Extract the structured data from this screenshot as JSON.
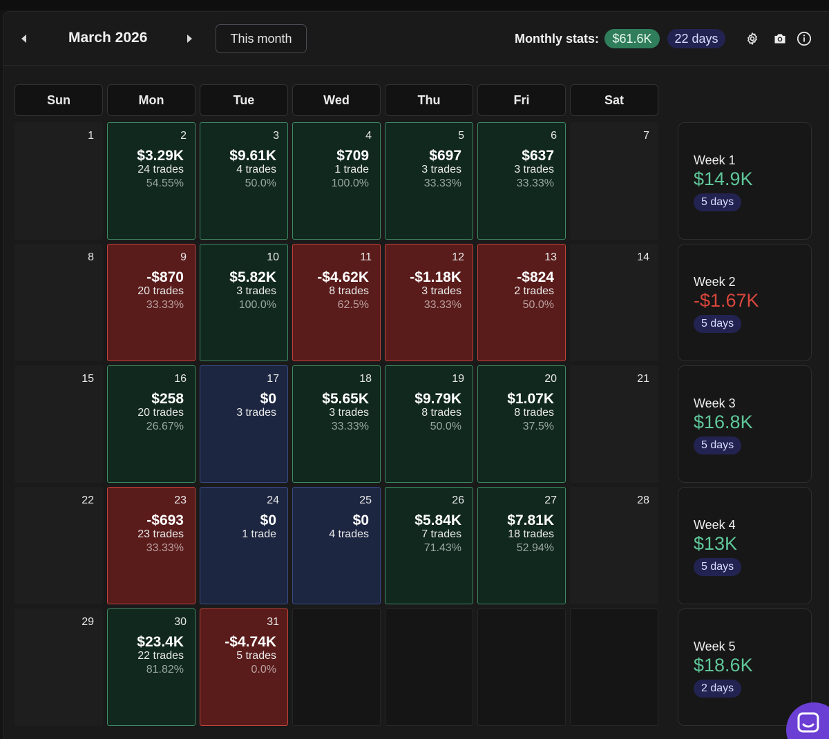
{
  "header": {
    "month_title": "March 2026",
    "this_month_label": "This month",
    "stats_label": "Monthly stats:",
    "monthly_pnl": "$61.6K",
    "monthly_days": "22 days",
    "icons": [
      "chevron-left-icon",
      "chevron-right-icon",
      "gear-icon",
      "camera-icon",
      "info-icon"
    ]
  },
  "weekdays": [
    "Sun",
    "Mon",
    "Tue",
    "Wed",
    "Thu",
    "Fri",
    "Sat"
  ],
  "weeks": [
    [
      {
        "day": "1",
        "status": "none"
      },
      {
        "day": "2",
        "status": "green",
        "pnl": "$3.29K",
        "trades": "24 trades",
        "rate": "54.55%"
      },
      {
        "day": "3",
        "status": "green",
        "pnl": "$9.61K",
        "trades": "4 trades",
        "rate": "50.0%"
      },
      {
        "day": "4",
        "status": "green",
        "pnl": "$709",
        "trades": "1 trade",
        "rate": "100.0%"
      },
      {
        "day": "5",
        "status": "green",
        "pnl": "$697",
        "trades": "3 trades",
        "rate": "33.33%"
      },
      {
        "day": "6",
        "status": "green",
        "pnl": "$637",
        "trades": "3 trades",
        "rate": "33.33%"
      },
      {
        "day": "7",
        "status": "none"
      }
    ],
    [
      {
        "day": "8",
        "status": "none"
      },
      {
        "day": "9",
        "status": "red",
        "pnl": "-$870",
        "trades": "20 trades",
        "rate": "33.33%"
      },
      {
        "day": "10",
        "status": "green",
        "pnl": "$5.82K",
        "trades": "3 trades",
        "rate": "100.0%"
      },
      {
        "day": "11",
        "status": "red",
        "pnl": "-$4.62K",
        "trades": "8 trades",
        "rate": "62.5%"
      },
      {
        "day": "12",
        "status": "red",
        "pnl": "-$1.18K",
        "trades": "3 trades",
        "rate": "33.33%"
      },
      {
        "day": "13",
        "status": "red",
        "pnl": "-$824",
        "trades": "2 trades",
        "rate": "50.0%"
      },
      {
        "day": "14",
        "status": "none"
      }
    ],
    [
      {
        "day": "15",
        "status": "none"
      },
      {
        "day": "16",
        "status": "green",
        "pnl": "$258",
        "trades": "20 trades",
        "rate": "26.67%"
      },
      {
        "day": "17",
        "status": "blue",
        "pnl": "$0",
        "trades": "3 trades",
        "rate": ""
      },
      {
        "day": "18",
        "status": "green",
        "pnl": "$5.65K",
        "trades": "3 trades",
        "rate": "33.33%"
      },
      {
        "day": "19",
        "status": "green",
        "pnl": "$9.79K",
        "trades": "8 trades",
        "rate": "50.0%"
      },
      {
        "day": "20",
        "status": "green",
        "pnl": "$1.07K",
        "trades": "8 trades",
        "rate": "37.5%"
      },
      {
        "day": "21",
        "status": "none"
      }
    ],
    [
      {
        "day": "22",
        "status": "none"
      },
      {
        "day": "23",
        "status": "red",
        "pnl": "-$693",
        "trades": "23 trades",
        "rate": "33.33%"
      },
      {
        "day": "24",
        "status": "blue",
        "pnl": "$0",
        "trades": "1 trade",
        "rate": ""
      },
      {
        "day": "25",
        "status": "blue",
        "pnl": "$0",
        "trades": "4 trades",
        "rate": ""
      },
      {
        "day": "26",
        "status": "green",
        "pnl": "$5.84K",
        "trades": "7 trades",
        "rate": "71.43%"
      },
      {
        "day": "27",
        "status": "green",
        "pnl": "$7.81K",
        "trades": "18 trades",
        "rate": "52.94%"
      },
      {
        "day": "28",
        "status": "none"
      }
    ],
    [
      {
        "day": "29",
        "status": "none"
      },
      {
        "day": "30",
        "status": "green",
        "pnl": "$23.4K",
        "trades": "22 trades",
        "rate": "81.82%"
      },
      {
        "day": "31",
        "status": "red",
        "pnl": "-$4.74K",
        "trades": "5 trades",
        "rate": "0.0%"
      },
      {
        "day": "",
        "status": "empty"
      },
      {
        "day": "",
        "status": "empty"
      },
      {
        "day": "",
        "status": "empty"
      },
      {
        "day": "",
        "status": "empty"
      }
    ]
  ],
  "week_summaries": [
    {
      "label": "Week 1",
      "pnl": "$14.9K",
      "sign": "pos",
      "days": "5 days"
    },
    {
      "label": "Week 2",
      "pnl": "-$1.67K",
      "sign": "neg",
      "days": "5 days"
    },
    {
      "label": "Week 3",
      "pnl": "$16.8K",
      "sign": "pos",
      "days": "5 days"
    },
    {
      "label": "Week 4",
      "pnl": "$13K",
      "sign": "pos",
      "days": "5 days"
    },
    {
      "label": "Week 5",
      "pnl": "$18.6K",
      "sign": "pos",
      "days": "2 days"
    }
  ],
  "colors": {
    "profit": "#5fc699",
    "loss": "#d9463b",
    "neutral": "#1d2641",
    "accent": "#6b3fd4"
  }
}
